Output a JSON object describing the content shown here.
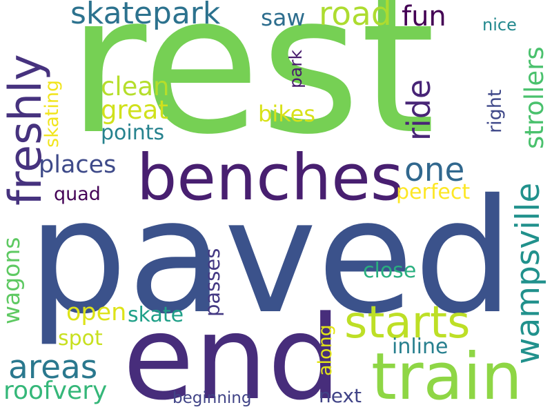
{
  "words": {
    "rest": {
      "text": "rest",
      "color": "#76d054"
    },
    "paved": {
      "text": "paved",
      "color": "#3b528b"
    },
    "end": {
      "text": "end",
      "color": "#472d7b"
    },
    "benches": {
      "text": "benches",
      "color": "#481f70"
    },
    "train": {
      "text": "train",
      "color": "#8ed645"
    },
    "starts": {
      "text": "starts",
      "color": "#bddf26"
    },
    "freshly": {
      "text": "freshly",
      "color": "#46327e"
    },
    "skatepark": {
      "text": "skatepark",
      "color": "#2c728e"
    },
    "wampsville": {
      "text": "wampsville",
      "color": "#21918c"
    },
    "road": {
      "text": "road",
      "color": "#addc30"
    },
    "one": {
      "text": "one",
      "color": "#31688e"
    },
    "ride": {
      "text": "ride",
      "color": "#482576"
    },
    "areas": {
      "text": "areas",
      "color": "#2a788e"
    },
    "saw": {
      "text": "saw",
      "color": "#2e6e8e"
    },
    "fun": {
      "text": "fun",
      "color": "#440154"
    },
    "clean": {
      "text": "clean",
      "color": "#b5de2b"
    },
    "great": {
      "text": "great",
      "color": "#d0e11c"
    },
    "bikes": {
      "text": "bikes",
      "color": "#d8e219"
    },
    "points": {
      "text": "points",
      "color": "#26828e"
    },
    "places": {
      "text": "places",
      "color": "#3e4a89"
    },
    "strollers": {
      "text": "strollers",
      "color": "#4ac16d"
    },
    "roofvery": {
      "text": "roofvery",
      "color": "#35b779"
    },
    "wagons": {
      "text": "wagons",
      "color": "#5ec962"
    },
    "open": {
      "text": "open",
      "color": "#dde318"
    },
    "skate": {
      "text": "skate",
      "color": "#1fa088"
    },
    "passes": {
      "text": "passes",
      "color": "#443983"
    },
    "close": {
      "text": "close",
      "color": "#29af7f"
    },
    "perfect": {
      "text": "perfect",
      "color": "#fde725"
    },
    "inline": {
      "text": "inline",
      "color": "#277f8e"
    },
    "next": {
      "text": "next",
      "color": "#414487"
    },
    "along": {
      "text": "along",
      "color": "#e2e418"
    },
    "spot": {
      "text": "spot",
      "color": "#c8e020"
    },
    "beginning": {
      "text": "beginning",
      "color": "#414487"
    },
    "quad": {
      "text": "quad",
      "color": "#450457"
    },
    "park": {
      "text": "park",
      "color": "#481b6d"
    },
    "skating": {
      "text": "skating",
      "color": "#f1e51d"
    },
    "right": {
      "text": "right",
      "color": "#3f4889"
    },
    "nice": {
      "text": "nice",
      "color": "#23898e"
    }
  }
}
